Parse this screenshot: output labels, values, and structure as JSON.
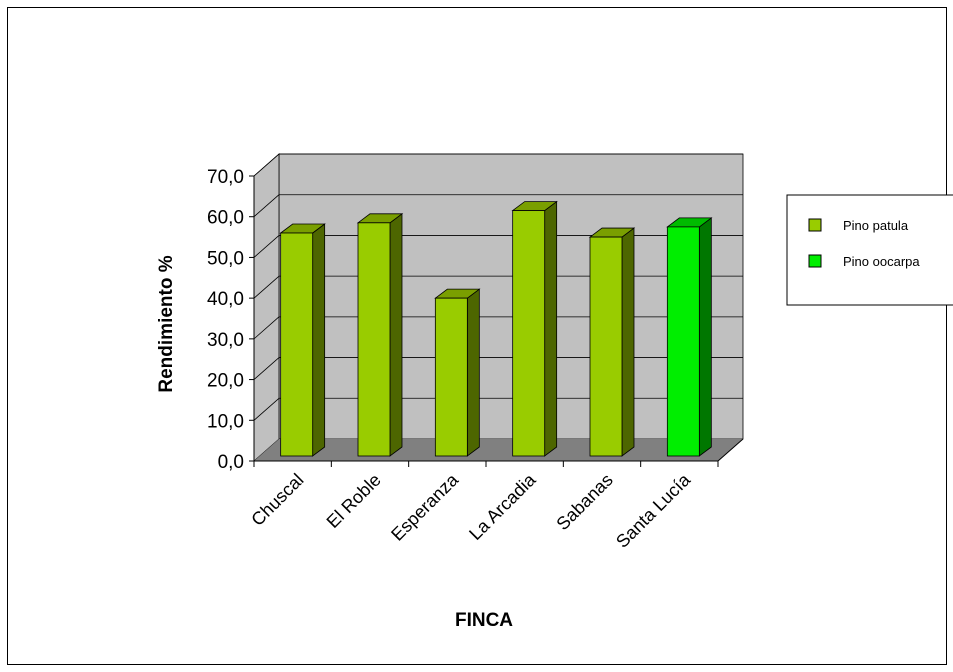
{
  "chart_data": {
    "type": "bar",
    "title": "",
    "xlabel": "FINCA",
    "ylabel": "Rendimiento %",
    "ylim": [
      0,
      70
    ],
    "yticks": [
      "0,0",
      "10,0",
      "20,0",
      "30,0",
      "40,0",
      "50,0",
      "60,0",
      "70,0"
    ],
    "categories": [
      "Chuscal",
      "El Roble",
      "Esperanza",
      "La Arcadia",
      "Sabanas",
      "Santa Lucía"
    ],
    "values": [
      56,
      58.5,
      40,
      61.5,
      55,
      57.5
    ],
    "bar_series": [
      "Pino patula",
      "Pino patula",
      "Pino patula",
      "Pino patula",
      "Pino patula",
      "Pino oocarpa"
    ],
    "series": [
      {
        "name": "Pino patula",
        "color": "#99cc00"
      },
      {
        "name": "Pino oocarpa",
        "color": "#00ee00"
      }
    ],
    "grid": true,
    "legend_position": "right",
    "style": "3d-column"
  }
}
